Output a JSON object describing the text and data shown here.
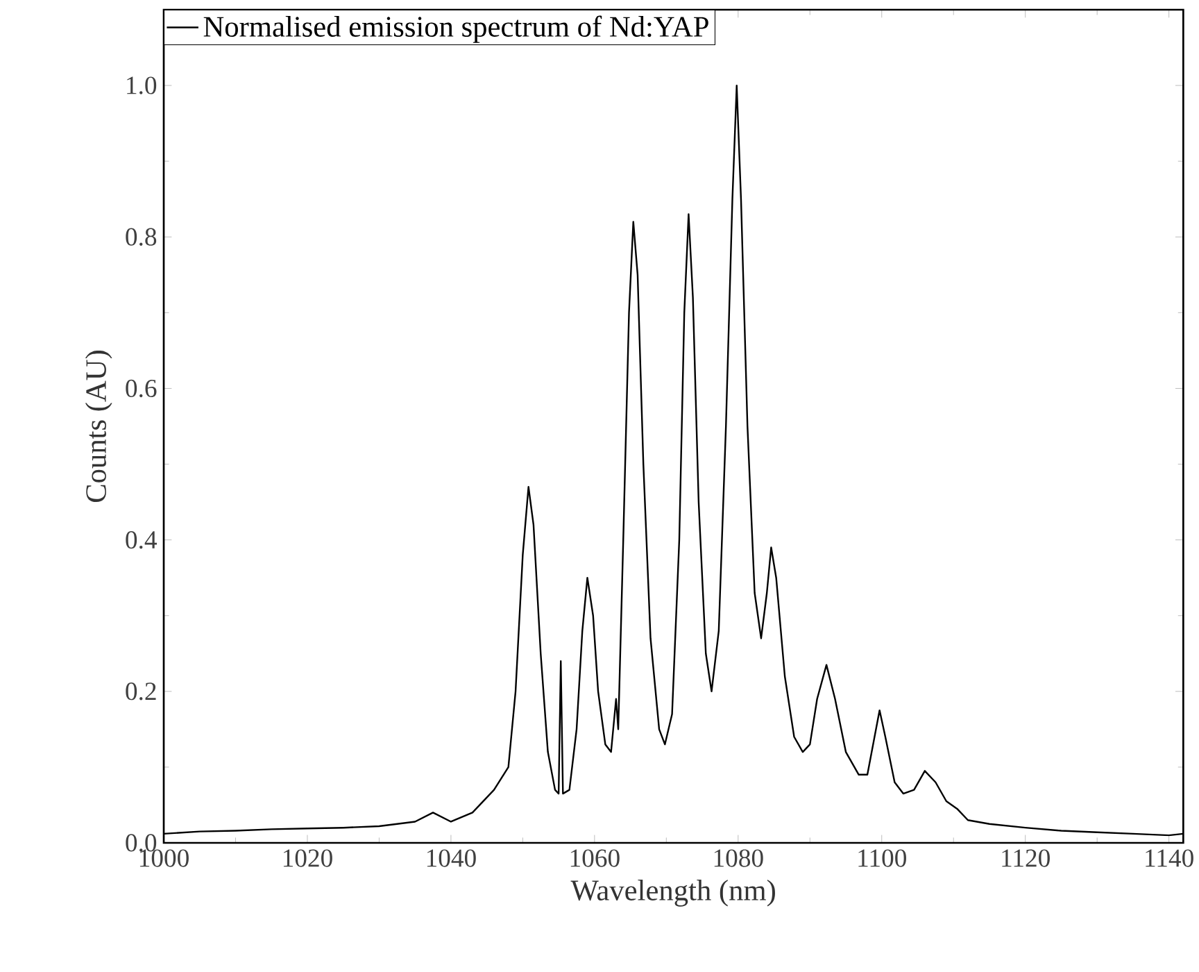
{
  "chart_data": {
    "type": "line",
    "xlabel": "Wavelength (nm)",
    "ylabel": "Counts (AU)",
    "legend": "top left",
    "x": [
      1000,
      1005,
      1010,
      1015,
      1020,
      1025,
      1030,
      1035,
      1037.5,
      1040,
      1043,
      1046,
      1048,
      1049,
      1050,
      1050.8,
      1051.5,
      1052.5,
      1053.5,
      1054.5,
      1055,
      1055.3,
      1055.6,
      1056.5,
      1057.5,
      1058.3,
      1059,
      1059.8,
      1060.5,
      1061.5,
      1062.3,
      1063,
      1063.3,
      1064,
      1064.8,
      1065.4,
      1066,
      1066.8,
      1067.8,
      1069,
      1069.8,
      1070.8,
      1071.8,
      1072.5,
      1073.1,
      1073.7,
      1074.5,
      1075.5,
      1076.3,
      1077.3,
      1078.3,
      1079.2,
      1079.8,
      1080.4,
      1081.3,
      1082.3,
      1083.2,
      1084,
      1084.6,
      1085.3,
      1086.5,
      1087.8,
      1089,
      1090,
      1091,
      1092.3,
      1093.5,
      1095,
      1096.8,
      1098,
      1099,
      1099.7,
      1100.5,
      1101.8,
      1103,
      1104.5,
      1106,
      1107.5,
      1109,
      1110.5,
      1112,
      1115,
      1120,
      1125,
      1130,
      1135,
      1140,
      1142
    ],
    "series": [
      {
        "name": "Normalised emission spectrum of Nd:YAP",
        "color": "#000000",
        "values": [
          0.012,
          0.015,
          0.016,
          0.018,
          0.019,
          0.02,
          0.022,
          0.028,
          0.04,
          0.028,
          0.04,
          0.07,
          0.1,
          0.2,
          0.38,
          0.47,
          0.42,
          0.25,
          0.12,
          0.07,
          0.065,
          0.24,
          0.065,
          0.07,
          0.15,
          0.28,
          0.35,
          0.3,
          0.2,
          0.13,
          0.12,
          0.19,
          0.15,
          0.4,
          0.7,
          0.82,
          0.75,
          0.5,
          0.27,
          0.15,
          0.13,
          0.17,
          0.4,
          0.7,
          0.83,
          0.72,
          0.45,
          0.25,
          0.2,
          0.28,
          0.55,
          0.85,
          1.0,
          0.85,
          0.55,
          0.33,
          0.27,
          0.33,
          0.39,
          0.35,
          0.22,
          0.14,
          0.12,
          0.13,
          0.19,
          0.235,
          0.19,
          0.12,
          0.09,
          0.09,
          0.14,
          0.175,
          0.14,
          0.08,
          0.065,
          0.07,
          0.095,
          0.08,
          0.055,
          0.045,
          0.03,
          0.025,
          0.02,
          0.016,
          0.014,
          0.012,
          0.01,
          0.012
        ]
      }
    ],
    "xlim": [
      1000,
      1142
    ],
    "ylim": [
      0,
      1.1
    ],
    "xticks": [
      1000,
      1020,
      1040,
      1060,
      1080,
      1100,
      1120,
      1140
    ],
    "yticks": [
      {
        "value": 0,
        "label": "0.0"
      },
      {
        "value": 0.2,
        "label": "0.2"
      },
      {
        "value": 0.4,
        "label": "0.4"
      },
      {
        "value": 0.6,
        "label": "0.6"
      },
      {
        "value": 0.8,
        "label": "0.8"
      },
      {
        "value": 1.0,
        "label": "1.0"
      }
    ]
  }
}
